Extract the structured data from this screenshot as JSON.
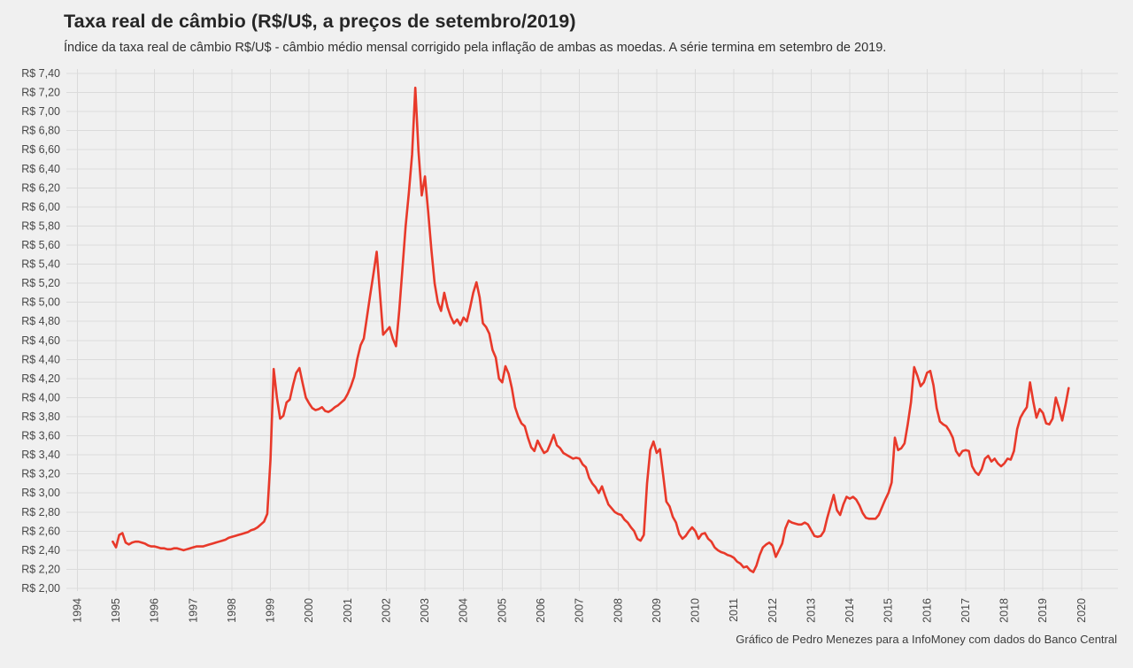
{
  "page": {
    "background": "#F0F0F0"
  },
  "chart_data": {
    "type": "line",
    "title": "Taxa real de câmbio (R$/U$, a preços de setembro/2019)",
    "subtitle": "Índice da taxa real de câmbio R$/U$ - câmbio médio mensal corrigido pela inflação de ambas as moedas. A série termina em setembro de 2019.",
    "caption": "Gráfico de Pedro Menezes para a InfoMoney com dados do Banco Central",
    "series_name": "Taxa real de câmbio R$/U$ (preços de setembro/2019)",
    "line_color": "#E8392A",
    "grid_color": "#DBDBDB",
    "background_color": "#F0F0F0",
    "text_color": "#474747",
    "legend": "none",
    "grid": "on",
    "ylim": [
      2.0,
      7.4
    ],
    "y_tick_step": 0.2,
    "y_tick_labels": [
      "R$ 7,40",
      "R$ 7,20",
      "R$ 7,00",
      "R$ 6,80",
      "R$ 6,60",
      "R$ 6,40",
      "R$ 6,20",
      "R$ 6,00",
      "R$ 5,80",
      "R$ 5,60",
      "R$ 5,40",
      "R$ 5,20",
      "R$ 5,00",
      "R$ 4,80",
      "R$ 4,60",
      "R$ 4,40",
      "R$ 4,20",
      "R$ 4,00",
      "R$ 3,80",
      "R$ 3,60",
      "R$ 3,40",
      "R$ 3,20",
      "R$ 3,00",
      "R$ 2,80",
      "R$ 2,60",
      "R$ 2,40",
      "R$ 2,20",
      "R$ 2,00"
    ],
    "x_tick_labels": [
      "1994",
      "1995",
      "1996",
      "1997",
      "1998",
      "1999",
      "2000",
      "2001",
      "2002",
      "2003",
      "2004",
      "2005",
      "2006",
      "2007",
      "2008",
      "2009",
      "2010",
      "2011",
      "2012",
      "2013",
      "2014",
      "2015",
      "2016",
      "2017",
      "2018",
      "2019",
      "2020"
    ],
    "series": {
      "frequency": "monthly",
      "start_month": "1994-12",
      "end_month": "2019-09",
      "values": [
        2.49,
        2.43,
        2.56,
        2.58,
        2.48,
        2.46,
        2.48,
        2.49,
        2.49,
        2.48,
        2.47,
        2.45,
        2.44,
        2.44,
        2.43,
        2.42,
        2.42,
        2.41,
        2.41,
        2.42,
        2.42,
        2.41,
        2.4,
        2.41,
        2.42,
        2.43,
        2.44,
        2.44,
        2.44,
        2.45,
        2.46,
        2.47,
        2.48,
        2.49,
        2.5,
        2.51,
        2.53,
        2.54,
        2.55,
        2.56,
        2.57,
        2.58,
        2.59,
        2.61,
        2.62,
        2.64,
        2.67,
        2.7,
        2.78,
        3.35,
        4.3,
        4.0,
        3.78,
        3.81,
        3.95,
        3.98,
        4.13,
        4.26,
        4.31,
        4.15,
        4.0,
        3.94,
        3.89,
        3.87,
        3.88,
        3.9,
        3.86,
        3.85,
        3.87,
        3.9,
        3.92,
        3.95,
        3.98,
        4.04,
        4.12,
        4.22,
        4.41,
        4.55,
        4.62,
        4.85,
        5.08,
        5.3,
        5.53,
        5.1,
        4.66,
        4.7,
        4.74,
        4.62,
        4.54,
        4.91,
        5.35,
        5.8,
        6.15,
        6.55,
        7.25,
        6.58,
        6.12,
        6.32,
        5.95,
        5.55,
        5.2,
        5.0,
        4.91,
        5.1,
        4.95,
        4.85,
        4.78,
        4.82,
        4.76,
        4.84,
        4.8,
        4.94,
        5.1,
        5.21,
        5.05,
        4.78,
        4.74,
        4.67,
        4.5,
        4.42,
        4.2,
        4.16,
        4.33,
        4.25,
        4.1,
        3.9,
        3.8,
        3.73,
        3.7,
        3.58,
        3.48,
        3.44,
        3.55,
        3.48,
        3.42,
        3.44,
        3.52,
        3.61,
        3.5,
        3.47,
        3.42,
        3.4,
        3.38,
        3.36,
        3.37,
        3.36,
        3.3,
        3.27,
        3.16,
        3.1,
        3.06,
        3.0,
        3.07,
        2.97,
        2.88,
        2.84,
        2.8,
        2.78,
        2.77,
        2.72,
        2.69,
        2.64,
        2.6,
        2.52,
        2.5,
        2.56,
        3.1,
        3.45,
        3.54,
        3.42,
        3.46,
        3.19,
        2.91,
        2.86,
        2.75,
        2.69,
        2.57,
        2.52,
        2.55,
        2.6,
        2.64,
        2.6,
        2.52,
        2.57,
        2.58,
        2.52,
        2.49,
        2.43,
        2.4,
        2.38,
        2.37,
        2.35,
        2.34,
        2.32,
        2.28,
        2.26,
        2.22,
        2.23,
        2.19,
        2.17,
        2.24,
        2.35,
        2.43,
        2.46,
        2.48,
        2.45,
        2.33,
        2.4,
        2.47,
        2.63,
        2.71,
        2.69,
        2.68,
        2.67,
        2.67,
        2.69,
        2.67,
        2.61,
        2.55,
        2.54,
        2.55,
        2.6,
        2.74,
        2.86,
        2.98,
        2.82,
        2.77,
        2.88,
        2.96,
        2.94,
        2.96,
        2.93,
        2.87,
        2.79,
        2.74,
        2.73,
        2.73,
        2.73,
        2.77,
        2.85,
        2.93,
        3.0,
        3.11,
        3.58,
        3.45,
        3.47,
        3.52,
        3.72,
        3.95,
        4.32,
        4.23,
        4.12,
        4.16,
        4.26,
        4.28,
        4.13,
        3.89,
        3.75,
        3.72,
        3.7,
        3.65,
        3.58,
        3.44,
        3.39,
        3.44,
        3.45,
        3.44,
        3.28,
        3.22,
        3.19,
        3.25,
        3.36,
        3.39,
        3.33,
        3.36,
        3.31,
        3.28,
        3.31,
        3.36,
        3.35,
        3.44,
        3.67,
        3.79,
        3.85,
        3.9,
        4.16,
        3.96,
        3.79,
        3.88,
        3.84,
        3.73,
        3.72,
        3.78,
        4.0,
        3.89,
        3.76,
        3.92,
        4.1
      ]
    }
  }
}
